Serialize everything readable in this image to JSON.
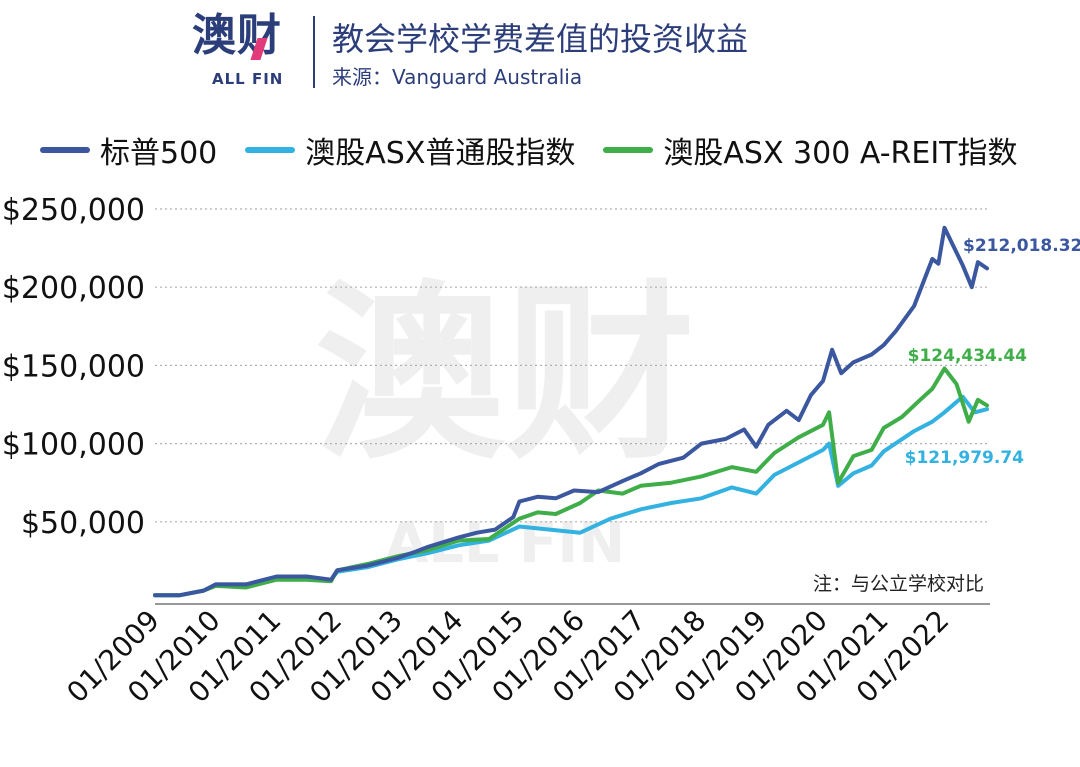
{
  "header": {
    "logo_text": "澳财",
    "logo_sub": "ALL FIN",
    "title": "教会学校学费差值的投资收益",
    "source": "来源：Vanguard Australia"
  },
  "colors": {
    "sp500": "#3a579f",
    "asx_all_ords": "#33b1e0",
    "asx300_areit": "#3fae49",
    "grid": "#b0b0b0",
    "axis_text": "#111111"
  },
  "chart_data": {
    "type": "line",
    "title": "教会学校学费差值的投资收益",
    "xlabel": "",
    "ylabel": "",
    "xlim": [
      2009.0,
      2022.75
    ],
    "ylim": [
      0,
      250000
    ],
    "x_ticks": [
      2009,
      2010,
      2011,
      2012,
      2013,
      2014,
      2015,
      2016,
      2017,
      2018,
      2019,
      2020,
      2021,
      2022
    ],
    "x_tick_labels": [
      "01/2009",
      "01/2010",
      "01/2011",
      "01/2012",
      "01/2013",
      "01/2014",
      "01/2015",
      "01/2016",
      "01/2017",
      "01/2018",
      "01/2019",
      "01/2020",
      "01/2021",
      "01/2022"
    ],
    "y_ticks": [
      50000,
      100000,
      150000,
      200000,
      250000
    ],
    "y_tick_labels": [
      "$50,000",
      "$100,000",
      "$150,000",
      "$200,000",
      "$250,000"
    ],
    "grid": "horizontal-dotted",
    "legend_position": "top",
    "note": "注：与公立学校对比",
    "watermark": "澳财 ALL FIN",
    "series": [
      {
        "name": "标普500",
        "color": "#3a579f",
        "end_label": "$212,018.32",
        "points": [
          [
            2009.0,
            3000
          ],
          [
            2009.4,
            3000
          ],
          [
            2009.8,
            6000
          ],
          [
            2010.0,
            10000
          ],
          [
            2010.5,
            10000
          ],
          [
            2011.0,
            15000
          ],
          [
            2011.5,
            15000
          ],
          [
            2011.9,
            13000
          ],
          [
            2012.0,
            19000
          ],
          [
            2012.5,
            22000
          ],
          [
            2013.0,
            27000
          ],
          [
            2013.3,
            31000
          ],
          [
            2013.5,
            34000
          ],
          [
            2014.0,
            40000
          ],
          [
            2014.3,
            43000
          ],
          [
            2014.6,
            45000
          ],
          [
            2014.9,
            53000
          ],
          [
            2015.0,
            63000
          ],
          [
            2015.3,
            66000
          ],
          [
            2015.6,
            65000
          ],
          [
            2015.9,
            70000
          ],
          [
            2016.3,
            69000
          ],
          [
            2016.7,
            76000
          ],
          [
            2017.0,
            81000
          ],
          [
            2017.3,
            87000
          ],
          [
            2017.7,
            91000
          ],
          [
            2018.0,
            100000
          ],
          [
            2018.4,
            103000
          ],
          [
            2018.7,
            109000
          ],
          [
            2018.9,
            98000
          ],
          [
            2019.1,
            112000
          ],
          [
            2019.4,
            121000
          ],
          [
            2019.6,
            115000
          ],
          [
            2019.8,
            131000
          ],
          [
            2020.0,
            140000
          ],
          [
            2020.15,
            160000
          ],
          [
            2020.3,
            145000
          ],
          [
            2020.5,
            152000
          ],
          [
            2020.8,
            157000
          ],
          [
            2021.0,
            163000
          ],
          [
            2021.2,
            172000
          ],
          [
            2021.5,
            188000
          ],
          [
            2021.8,
            218000
          ],
          [
            2021.9,
            215000
          ],
          [
            2022.0,
            238000
          ],
          [
            2022.15,
            226000
          ],
          [
            2022.3,
            214000
          ],
          [
            2022.45,
            200000
          ],
          [
            2022.55,
            216000
          ],
          [
            2022.7,
            212018
          ]
        ]
      },
      {
        "name": "澳股ASX普通股指数",
        "color": "#33b1e0",
        "end_label": "$121,979.74",
        "points": [
          [
            2009.0,
            3000
          ],
          [
            2009.4,
            3000
          ],
          [
            2009.8,
            6000
          ],
          [
            2010.0,
            10000
          ],
          [
            2010.5,
            10000
          ],
          [
            2011.0,
            14000
          ],
          [
            2011.5,
            14000
          ],
          [
            2011.9,
            13000
          ],
          [
            2012.0,
            18000
          ],
          [
            2012.5,
            21000
          ],
          [
            2013.0,
            26000
          ],
          [
            2013.5,
            30000
          ],
          [
            2014.0,
            35000
          ],
          [
            2014.5,
            38000
          ],
          [
            2015.0,
            47000
          ],
          [
            2015.5,
            45000
          ],
          [
            2016.0,
            43000
          ],
          [
            2016.5,
            52000
          ],
          [
            2017.0,
            58000
          ],
          [
            2017.5,
            62000
          ],
          [
            2018.0,
            65000
          ],
          [
            2018.5,
            72000
          ],
          [
            2018.9,
            68000
          ],
          [
            2019.2,
            80000
          ],
          [
            2019.6,
            88000
          ],
          [
            2020.0,
            96000
          ],
          [
            2020.1,
            100000
          ],
          [
            2020.25,
            73000
          ],
          [
            2020.5,
            81000
          ],
          [
            2020.8,
            86000
          ],
          [
            2021.0,
            95000
          ],
          [
            2021.5,
            108000
          ],
          [
            2021.8,
            114000
          ],
          [
            2022.0,
            120000
          ],
          [
            2022.3,
            130000
          ],
          [
            2022.5,
            120000
          ],
          [
            2022.7,
            121980
          ]
        ]
      },
      {
        "name": "澳股ASX 300 A-REIT指数",
        "color": "#3fae49",
        "end_label": "$124,434.44",
        "points": [
          [
            2009.0,
            3000
          ],
          [
            2009.4,
            3000
          ],
          [
            2009.8,
            6000
          ],
          [
            2010.0,
            9000
          ],
          [
            2010.5,
            8000
          ],
          [
            2011.0,
            13000
          ],
          [
            2011.5,
            13000
          ],
          [
            2011.9,
            12000
          ],
          [
            2012.0,
            19000
          ],
          [
            2012.5,
            23000
          ],
          [
            2013.0,
            28000
          ],
          [
            2013.5,
            32000
          ],
          [
            2014.0,
            38000
          ],
          [
            2014.5,
            39000
          ],
          [
            2015.0,
            52000
          ],
          [
            2015.3,
            56000
          ],
          [
            2015.6,
            55000
          ],
          [
            2016.0,
            62000
          ],
          [
            2016.3,
            70000
          ],
          [
            2016.7,
            68000
          ],
          [
            2017.0,
            73000
          ],
          [
            2017.5,
            75000
          ],
          [
            2018.0,
            79000
          ],
          [
            2018.5,
            85000
          ],
          [
            2018.9,
            82000
          ],
          [
            2019.2,
            94000
          ],
          [
            2019.6,
            104000
          ],
          [
            2020.0,
            112000
          ],
          [
            2020.1,
            120000
          ],
          [
            2020.25,
            75000
          ],
          [
            2020.5,
            92000
          ],
          [
            2020.8,
            96000
          ],
          [
            2021.0,
            110000
          ],
          [
            2021.3,
            117000
          ],
          [
            2021.6,
            128000
          ],
          [
            2021.8,
            135000
          ],
          [
            2022.0,
            148000
          ],
          [
            2022.2,
            138000
          ],
          [
            2022.4,
            114000
          ],
          [
            2022.55,
            128000
          ],
          [
            2022.7,
            124434
          ]
        ]
      }
    ]
  }
}
